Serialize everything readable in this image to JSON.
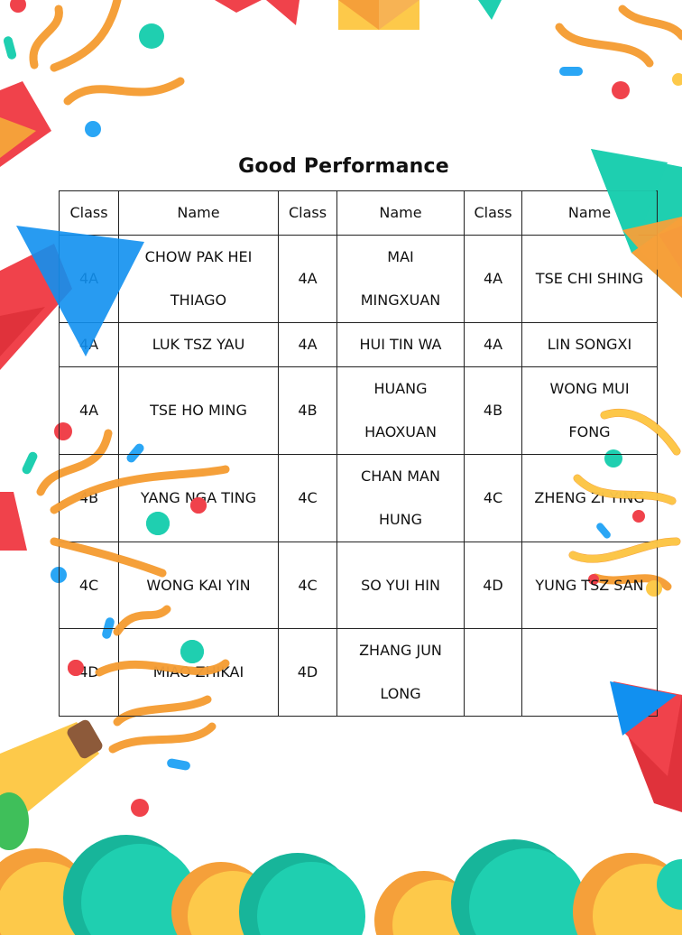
{
  "title": "Good Performance",
  "headers": [
    "Class",
    "Name",
    "Class",
    "Name",
    "Class",
    "Name"
  ],
  "rows": [
    [
      {
        "class": "4A",
        "name": "CHOW PAK HEI\nTHIAGO"
      },
      {
        "class": "4A",
        "name": "MAI\nMINGXUAN"
      },
      {
        "class": "4A",
        "name": "TSE CHI SHING"
      }
    ],
    [
      {
        "class": "4A",
        "name": "LUK TSZ YAU"
      },
      {
        "class": "4A",
        "name": "HUI TIN WA"
      },
      {
        "class": "4A",
        "name": "LIN SONGXI"
      }
    ],
    [
      {
        "class": "4A",
        "name": "TSE HO MING"
      },
      {
        "class": "4B",
        "name": "HUANG\nHAOXUAN"
      },
      {
        "class": "4B",
        "name": "WONG MUI\nFONG"
      }
    ],
    [
      {
        "class": "4B",
        "name": "YANG NGA TING"
      },
      {
        "class": "4C",
        "name": "CHAN MAN\nHUNG"
      },
      {
        "class": "4C",
        "name": "ZHENG ZI YING"
      }
    ],
    [
      {
        "class": "4C",
        "name": "WONG KAI YIN"
      },
      {
        "class": "4C",
        "name": "SO YUI HIN"
      },
      {
        "class": "4D",
        "name": "YUNG TSZ SAN"
      }
    ],
    [
      {
        "class": "4D",
        "name": "MIAO ZHIKAI"
      },
      {
        "class": "4D",
        "name": "ZHANG JUN\nLONG"
      },
      {
        "class": "",
        "name": ""
      }
    ]
  ],
  "colors": {
    "orange": "#f5a03a",
    "teal": "#1fcfb0",
    "red": "#f0424b",
    "blue": "#2aa6f5",
    "yellow": "#fdc94a"
  }
}
